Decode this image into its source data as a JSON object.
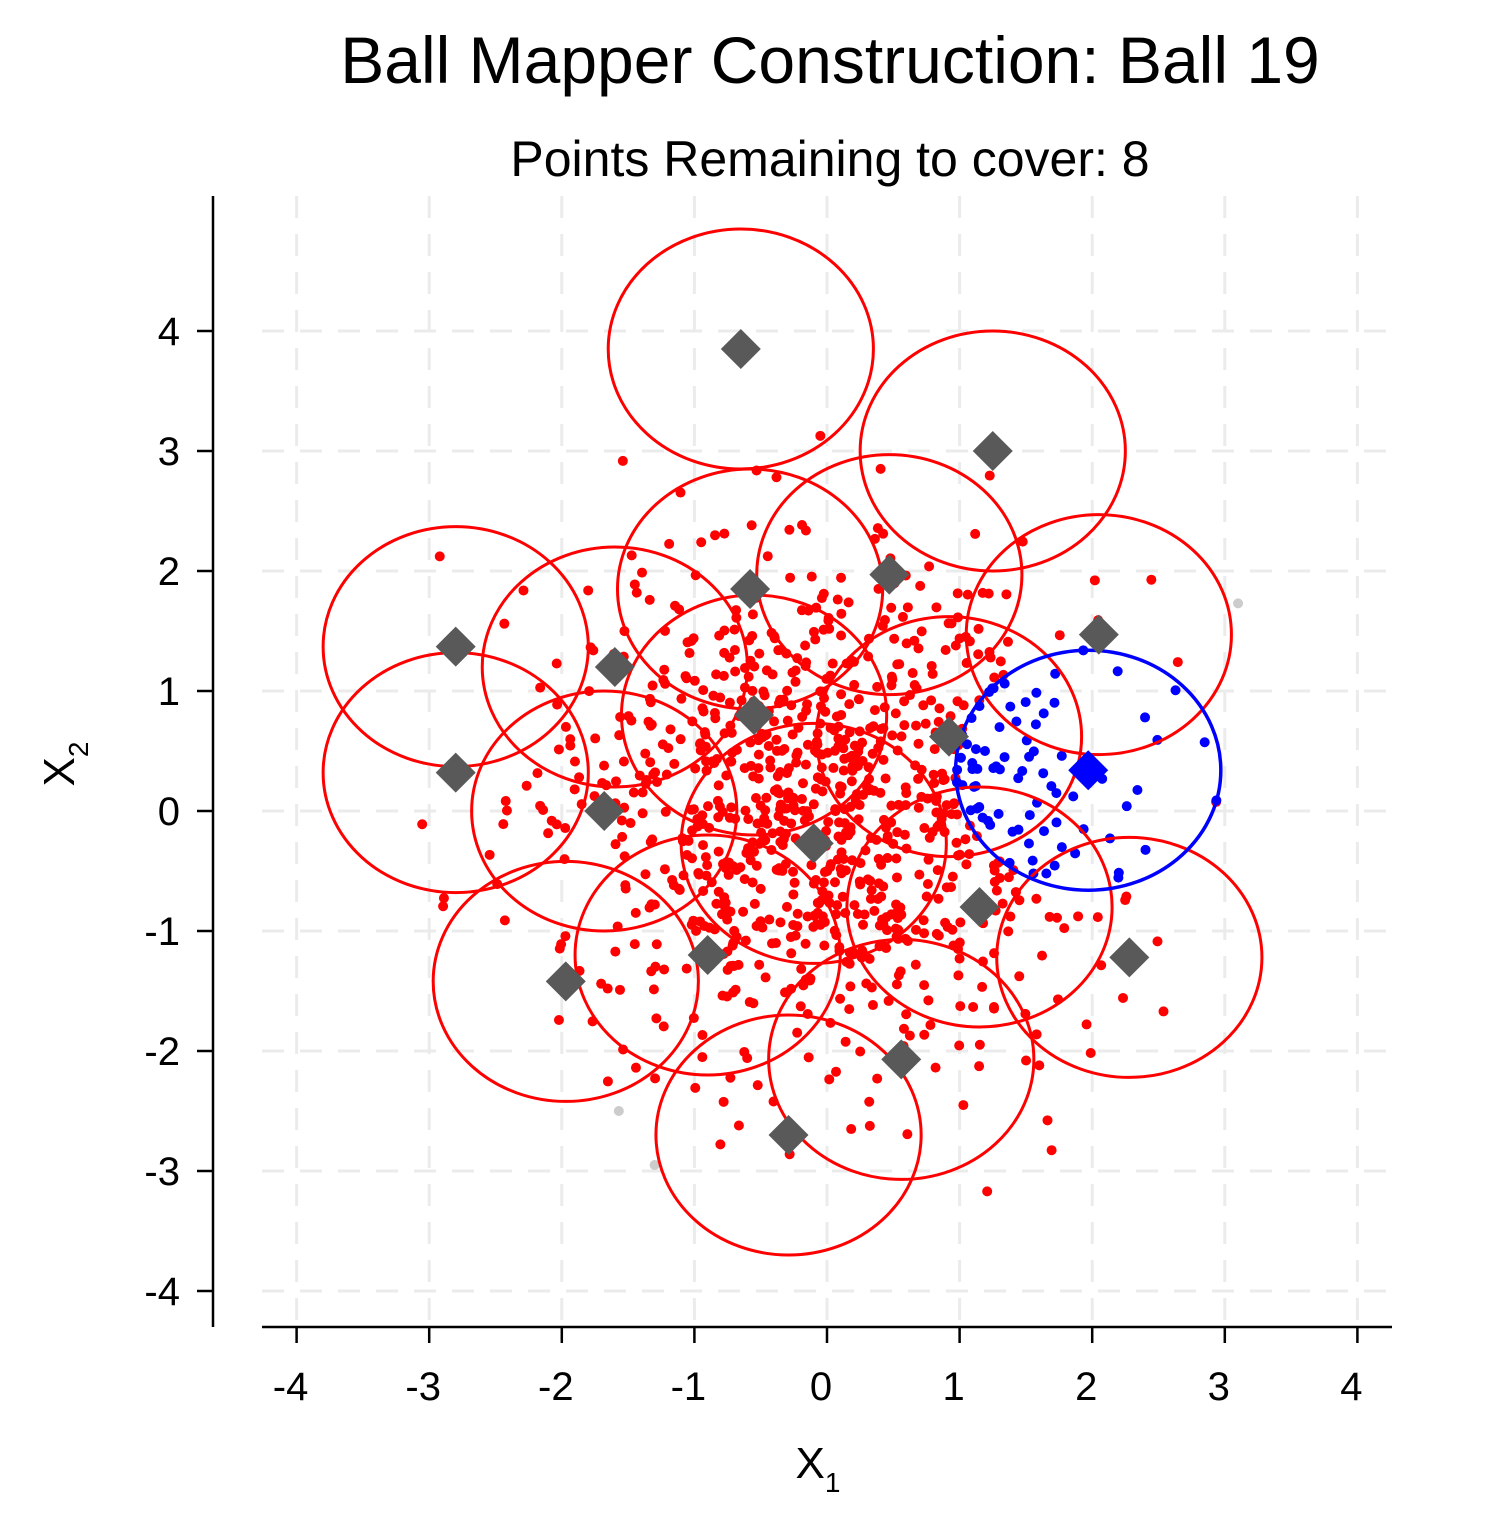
{
  "chart_data": {
    "type": "scatter",
    "title": "Ball Mapper Construction: Ball 19",
    "subtitle": "Points Remaining to cover: 8",
    "xlabel": "X",
    "xlabel_sub": "1",
    "ylabel": "X",
    "ylabel_sub": "2",
    "xlim": [
      -4.4,
      4.4
    ],
    "ylim": [
      -4.3,
      5.1
    ],
    "x_ticks": [
      -4,
      -3,
      -2,
      -1,
      0,
      1,
      2,
      3,
      4
    ],
    "y_ticks": [
      -4,
      -3,
      -2,
      -1,
      0,
      1,
      2,
      3,
      4
    ],
    "grid": true,
    "radius": 1,
    "colors": {
      "covered": "#ff0000",
      "current": "#0000ff",
      "uncovered": "#cccccc",
      "center": "#595959",
      "grid": "#ebebeb"
    },
    "centers": [
      {
        "x": -0.65,
        "y": 3.85
      },
      {
        "x": 1.25,
        "y": 3.0
      },
      {
        "x": -0.58,
        "y": 1.85
      },
      {
        "x": 0.47,
        "y": 1.97
      },
      {
        "x": -2.8,
        "y": 1.37
      },
      {
        "x": -1.6,
        "y": 1.2
      },
      {
        "x": 2.05,
        "y": 1.47
      },
      {
        "x": -0.55,
        "y": 0.8
      },
      {
        "x": 0.92,
        "y": 0.62
      },
      {
        "x": -2.8,
        "y": 0.32
      },
      {
        "x": -1.68,
        "y": 0.0
      },
      {
        "x": -0.1,
        "y": -0.27
      },
      {
        "x": 1.15,
        "y": -0.8
      },
      {
        "x": -0.9,
        "y": -1.2
      },
      {
        "x": 2.28,
        "y": -1.22
      },
      {
        "x": -1.97,
        "y": -1.42
      },
      {
        "x": 0.56,
        "y": -2.07
      },
      {
        "x": -0.29,
        "y": -2.7
      }
    ],
    "current_center": {
      "x": 1.97,
      "y": 0.34
    },
    "uncovered_points": [
      {
        "x": 3.1,
        "y": 1.73
      },
      {
        "x": -1.57,
        "y": -2.5
      },
      {
        "x": -1.3,
        "y": -2.95
      }
    ],
    "sample_size": 1000,
    "seed": 19
  }
}
